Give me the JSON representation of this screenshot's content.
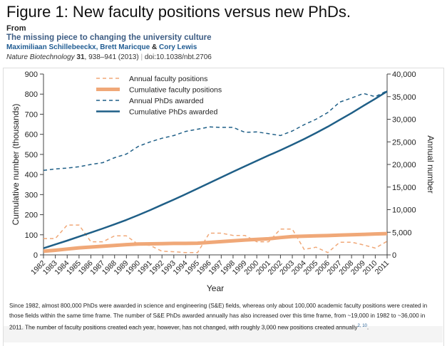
{
  "header": {
    "title": "Figure 1: New faculty positions versus new PhDs.",
    "from_label": "From",
    "article_title": "The missing piece to changing the university culture",
    "authors": [
      "Maximiliaan Schillebeeckx,",
      "Brett Maricque",
      "Cory Lewis"
    ],
    "author_sep": "&",
    "journal": "Nature Biotechnology",
    "volume": "31",
    "pages": ", 938–941 (2013)",
    "doi": "doi:10.1038/nbt.2706"
  },
  "chart_data": {
    "type": "line",
    "xlabel": "Year",
    "ylabel": "Cumulative number (thousands)",
    "ylabel_right": "Annual number",
    "ylim": [
      0,
      900
    ],
    "ylim_right": [
      0,
      40000
    ],
    "yticks": [
      "0",
      "100",
      "200",
      "300",
      "400",
      "500",
      "600",
      "700",
      "800",
      "900"
    ],
    "yticks_right": [
      "0",
      "5,000",
      "10,000",
      "15,000",
      "20,000",
      "25,000",
      "30,000",
      "35,000",
      "40,000"
    ],
    "x": [
      1982,
      1983,
      1984,
      1985,
      1986,
      1987,
      1988,
      1989,
      1990,
      1991,
      1992,
      1993,
      1994,
      1995,
      1996,
      1997,
      1998,
      1999,
      2000,
      2001,
      2002,
      2003,
      2004,
      2005,
      2006,
      2007,
      2008,
      2009,
      2010,
      2011
    ],
    "legend_position": "top-left",
    "series": [
      {
        "name": "Annual faculty positions",
        "axis": "right",
        "style": "dashed",
        "color": "#f0a878",
        "values": [
          3600,
          3600,
          6600,
          6600,
          2900,
          2900,
          4200,
          4200,
          2300,
          2100,
          800,
          700,
          500,
          500,
          4800,
          4800,
          4300,
          4300,
          2900,
          2900,
          5700,
          5700,
          1200,
          1700,
          500,
          2800,
          2800,
          2200,
          1500,
          3000
        ]
      },
      {
        "name": "Cumulative faculty positions",
        "axis": "left",
        "style": "thick",
        "color": "#f0a878",
        "values": [
          18,
          23,
          29,
          35,
          39,
          43,
          47,
          51,
          54,
          55,
          56,
          57,
          57,
          58,
          62,
          66,
          70,
          74,
          77,
          80,
          86,
          91,
          93,
          95,
          96,
          98,
          100,
          102,
          104,
          106
        ]
      },
      {
        "name": "Annual PhDs awarded",
        "axis": "right",
        "style": "dashed",
        "color": "#1f5f87",
        "values": [
          18700,
          19000,
          19200,
          19500,
          20000,
          20400,
          21500,
          22300,
          24000,
          25000,
          25800,
          26400,
          27300,
          27800,
          28300,
          28200,
          28200,
          27100,
          27200,
          26800,
          26400,
          27400,
          28800,
          30000,
          31500,
          33800,
          34700,
          35700,
          35000,
          36300
        ]
      },
      {
        "name": "Cumulative PhDs awarded",
        "axis": "left",
        "style": "solid",
        "color": "#1f5f87",
        "values": [
          33,
          52,
          71,
          91,
          111,
          131,
          152,
          174,
          198,
          223,
          249,
          275,
          302,
          330,
          358,
          386,
          414,
          441,
          468,
          495,
          521,
          548,
          577,
          607,
          638,
          672,
          706,
          742,
          777,
          814
        ]
      }
    ]
  },
  "caption": {
    "text": "Since 1982, almost 800,000 PhDs were awarded in science and engineering (S&E) fields, whereas only about 100,000 academic faculty positions were created in those fields within the same time frame. The number of S&E PhDs awarded annually has also increased over this time frame, from ~19,000 in 1982 to ~36,000 in 2011. The number of faculty positions created each year, however, has not changed, with roughly 3,000 new positions created annually",
    "refs": "2, 10",
    "end": "."
  }
}
